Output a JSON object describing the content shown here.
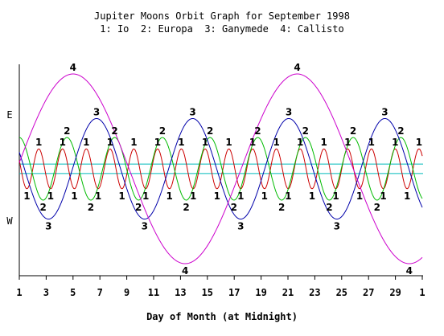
{
  "chart_data": {
    "type": "line",
    "title": "Jupiter Moons Orbit Graph for September 1998",
    "subtitle": "1: Io  2: Europa  3: Ganymede  4: Callisto",
    "xlabel": "Day of Month (at Midnight)",
    "xticks": [
      "1",
      "3",
      "5",
      "7",
      "9",
      "11",
      "13",
      "15",
      "17",
      "19",
      "21",
      "23",
      "25",
      "27",
      "29",
      "1"
    ],
    "xlim": [
      1,
      31
    ],
    "side_labels": {
      "east": "E",
      "west": "W"
    },
    "series": [
      {
        "name": "1",
        "color": "#cc0000",
        "amplitude": 0.21,
        "period": 1.769,
        "peak_day": 2.45
      },
      {
        "name": "2",
        "color": "#00bb00",
        "amplitude": 0.33,
        "period": 3.551,
        "peak_day": 4.55
      },
      {
        "name": "3",
        "color": "#0000aa",
        "amplitude": 0.53,
        "period": 7.155,
        "peak_day": 6.75
      },
      {
        "name": "4",
        "color": "#cc00cc",
        "amplitude": 1.0,
        "period": 16.689,
        "peak_day": 5.0
      }
    ],
    "reference_lines": [
      {
        "name": "jupiter-limb-upper",
        "value": 0.05,
        "color": "#00bbbb"
      },
      {
        "name": "jupiter-limb-lower",
        "value": -0.05,
        "color": "#00bbbb"
      }
    ]
  }
}
